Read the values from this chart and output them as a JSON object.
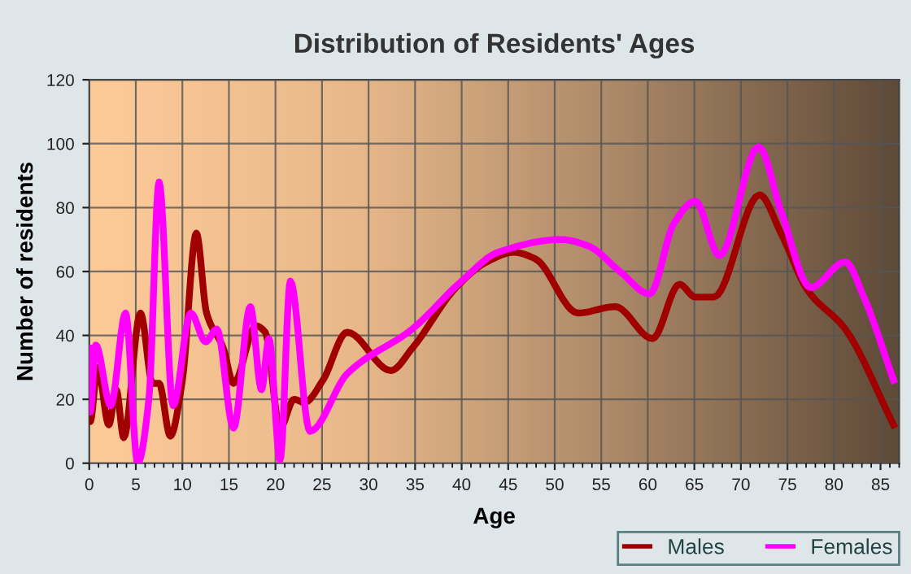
{
  "chart_data": {
    "type": "line",
    "title": "Distribution of Residents' Ages",
    "xlabel": "Age",
    "ylabel": "Number of residents",
    "xlim": [
      0,
      87
    ],
    "xticks": [
      0,
      5,
      10,
      15,
      20,
      25,
      30,
      35,
      40,
      45,
      50,
      55,
      60,
      65,
      70,
      75,
      80,
      85
    ],
    "ylim": [
      0,
      120
    ],
    "yticks": [
      0,
      20,
      40,
      60,
      80,
      100,
      120
    ],
    "grid": true,
    "legend": "bottom right",
    "marker": "none",
    "line_style": "solid",
    "series": [
      {
        "name": "Males",
        "color": "#a00000",
        "x": [
          0,
          0.1,
          0.9,
          2.1,
          2.9,
          3.7,
          5.5,
          6.8,
          7.5,
          8.7,
          10,
          11.5,
          12.6,
          14.4,
          15.5,
          17.9,
          18.9,
          20.5,
          22,
          23.1,
          25.1,
          27.7,
          32.4,
          34.7,
          39.4,
          42.7,
          45.6,
          47.9,
          52.5,
          56.5,
          60.5,
          63.4,
          65.1,
          67.1,
          72,
          74.3,
          77.2,
          81.2,
          86.4
        ],
        "values": [
          29,
          13,
          30,
          12,
          23,
          8,
          47,
          25,
          25,
          8.5,
          26,
          72,
          47,
          36,
          25,
          43,
          41,
          11,
          20,
          19,
          26,
          41,
          29,
          36,
          55,
          63,
          66,
          64,
          47,
          49,
          39,
          56,
          52,
          52,
          84,
          72,
          54,
          42,
          12
        ]
      },
      {
        "name": "Females",
        "color": "#ff00ff",
        "x": [
          0,
          0.1,
          0.7,
          2.3,
          3.9,
          5.2,
          6.4,
          7.5,
          9,
          10.9,
          12.5,
          13.7,
          15.5,
          17.3,
          18.5,
          19.3,
          20.5,
          21.6,
          23.7,
          27.7,
          34.7,
          40,
          43.9,
          50.7,
          53.6,
          57,
          60.2,
          62.8,
          65.1,
          67.7,
          71.9,
          74.3,
          77.5,
          81.2,
          83.2,
          86.4
        ],
        "values": [
          36,
          16,
          37,
          18,
          47,
          0,
          20,
          88,
          18,
          47,
          38,
          42,
          11,
          49,
          23,
          39,
          1,
          57,
          10,
          28,
          42,
          57,
          66,
          70,
          68,
          60,
          53,
          75,
          82,
          65,
          99,
          79,
          55,
          63,
          52,
          26
        ]
      }
    ]
  }
}
